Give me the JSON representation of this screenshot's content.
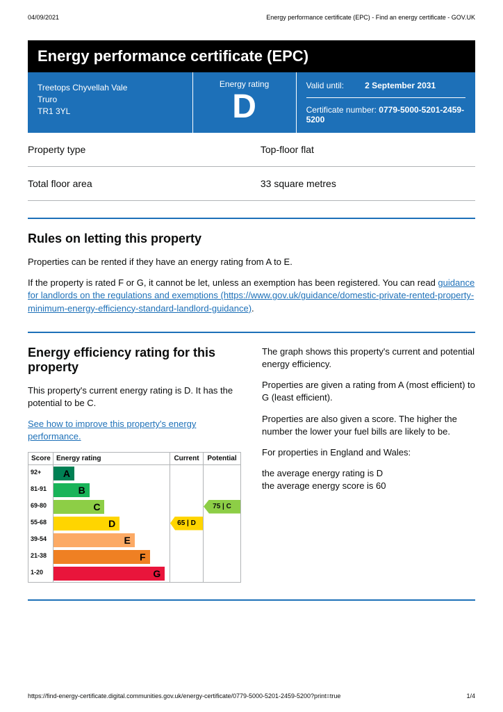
{
  "meta": {
    "date": "04/09/2021",
    "header_title": "Energy performance certificate (EPC) - Find an energy certificate - GOV.UK",
    "footer_url": "https://find-energy-certificate.digital.communities.gov.uk/energy-certificate/0779-5000-5201-2459-5200?print=true",
    "page_num": "1/4"
  },
  "title": "Energy performance certificate (EPC)",
  "address": {
    "line1": "Treetops Chyvellah Vale",
    "line2": "Truro",
    "line3": "TR1 3YL"
  },
  "rating_box": {
    "label": "Energy rating",
    "grade": "D"
  },
  "valid": {
    "label": "Valid until:",
    "value": "2 September 2031"
  },
  "cert": {
    "label": "Certificate number:",
    "value": "0779-5000-5201-2459-5200"
  },
  "props": [
    {
      "label": "Property type",
      "value": "Top-floor flat"
    },
    {
      "label": "Total floor area",
      "value": "33 square metres"
    }
  ],
  "letting": {
    "heading": "Rules on letting this property",
    "p1": "Properties can be rented if they have an energy rating from A to E.",
    "p2a": "If the property is rated F or G, it cannot be let, unless an exemption has been registered. You can read ",
    "link_text": "guidance for landlords on the regulations and exemptions (https://www.gov.uk/guidance/domestic-private-rented-property-minimum-energy-efficiency-standard-landlord-guidance)",
    "p2b": "."
  },
  "efficiency": {
    "heading": "Energy efficiency rating for this property",
    "left_p1": "This property's current energy rating is D. It has the potential to be C.",
    "left_link": "See how to improve this property's energy performance.",
    "right_p1": "The graph shows this property's current and potential energy efficiency.",
    "right_p2": "Properties are given a rating from A (most efficient) to G (least efficient).",
    "right_p3": "Properties are also given a score. The higher the number the lower your fuel bills are likely to be.",
    "right_p4": "For properties in England and Wales:",
    "right_p5a": "the average energy rating is D",
    "right_p5b": "the average energy score is 60"
  },
  "chart": {
    "head": {
      "score": "Score",
      "rating": "Energy rating",
      "current": "Current",
      "potential": "Potential"
    },
    "bands": [
      {
        "score": "92+",
        "letter": "A",
        "color": "#008054",
        "width_pct": 18
      },
      {
        "score": "81-91",
        "letter": "B",
        "color": "#19b459",
        "width_pct": 31
      },
      {
        "score": "69-80",
        "letter": "C",
        "color": "#8dce46",
        "width_pct": 44
      },
      {
        "score": "55-68",
        "letter": "D",
        "color": "#ffd500",
        "width_pct": 57
      },
      {
        "score": "39-54",
        "letter": "E",
        "color": "#fcaa65",
        "width_pct": 70
      },
      {
        "score": "21-38",
        "letter": "F",
        "color": "#ef8023",
        "width_pct": 83
      },
      {
        "score": "1-20",
        "letter": "G",
        "color": "#e9153b",
        "width_pct": 96
      }
    ],
    "current": {
      "row": 3,
      "label": "65 | D",
      "color": "#ffd500"
    },
    "potential": {
      "row": 2,
      "label": "75 | C",
      "color": "#8dce46"
    }
  }
}
